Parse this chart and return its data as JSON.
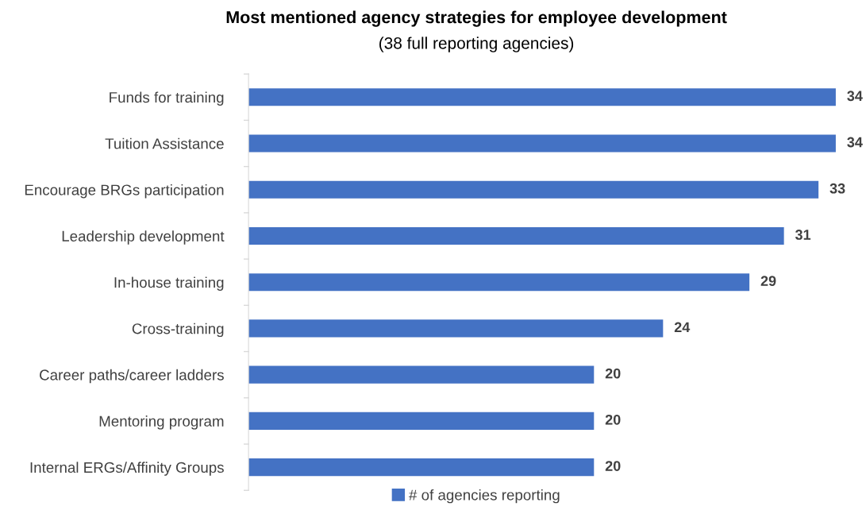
{
  "chart_data": {
    "type": "bar",
    "orientation": "horizontal",
    "title": "Most mentioned agency strategies for employee development",
    "subtitle": "(38 full reporting agencies)",
    "categories": [
      "Funds for training",
      "Tuition Assistance",
      "Encourage BRGs participation",
      "Leadership development",
      "In-house training",
      "Cross-training",
      "Career paths/career ladders",
      "Mentoring program",
      "Internal ERGs/Affinity Groups"
    ],
    "series": [
      {
        "name": "# of agencies reporting",
        "color": "#4472c4",
        "values": [
          34,
          34,
          33,
          31,
          29,
          24,
          20,
          20,
          20
        ]
      }
    ],
    "data_labels": true,
    "legend": "bottom",
    "grid": false,
    "tick_labels": "y"
  }
}
